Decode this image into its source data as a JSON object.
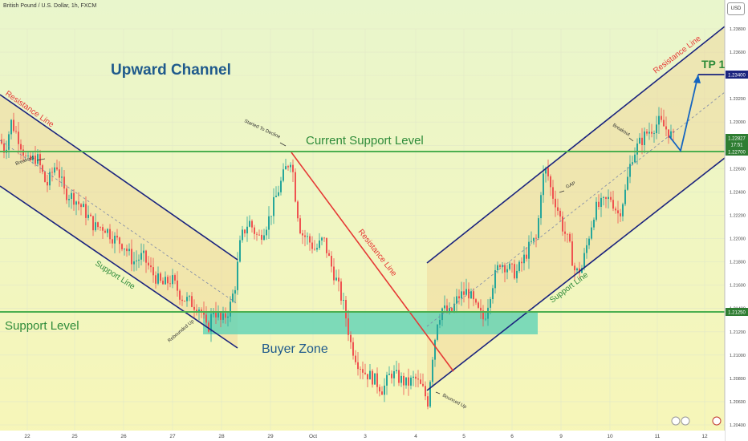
{
  "header": {
    "title": "British Pound / U.S. Dollar, 1h, FXCM",
    "currency_button": "USD"
  },
  "chart_data": {
    "type": "candlestick",
    "symbol": "British Pound / U.S. Dollar, 1h, FXCM",
    "ylim": [
      1.2035,
      1.2395
    ],
    "y_ticks": [
      1.238,
      1.236,
      1.234,
      1.232,
      1.23,
      1.228,
      1.226,
      1.224,
      1.222,
      1.22,
      1.218,
      1.216,
      1.214,
      1.212,
      1.21,
      1.208,
      1.206,
      1.204
    ],
    "x_ticks": [
      "22",
      "25",
      "26",
      "27",
      "28",
      "29",
      "Oct",
      "3",
      "4",
      "5",
      "6",
      "9",
      "10",
      "11",
      "12"
    ],
    "price_labels": [
      {
        "text": "1.23400",
        "value": 1.234,
        "color": "#1a237e"
      },
      {
        "text": "1.22827",
        "value": 1.22827,
        "color": "#2e7d32"
      },
      {
        "text": "17:51",
        "value": 1.2275,
        "color": "#2e7d32"
      },
      {
        "text": "1.22700",
        "value": 1.227,
        "color": "#2e7d32"
      },
      {
        "text": "1.21250",
        "value": 1.2125,
        "color": "#2e7d32"
      }
    ],
    "levels": [
      {
        "name": "Current Support Level",
        "value": 1.227
      },
      {
        "name": "Support Level",
        "value": 1.2125
      }
    ],
    "buyer_zone": {
      "label": "Buyer Zone",
      "top": 1.2125,
      "bottom": 1.2103
    },
    "annotations": {
      "upward_channel": "Upward Channel",
      "resistance_left": "Resistance Line",
      "support_left": "Support Line",
      "resistance_mid": "Resistance Line",
      "resistance_right": "Resistance Line",
      "support_right": "Support Line",
      "tp1": "TP 1",
      "breakout_left": "Breakout",
      "breakout_right": "Breakout",
      "rebounded": "Rebounded Up",
      "started": "Started To Decline",
      "bounced": "Bounced Up",
      "gap": "GAP"
    },
    "path": [
      [
        0,
        1.2285
      ],
      [
        6,
        1.2275
      ],
      [
        14,
        1.23
      ],
      [
        24,
        1.2285
      ],
      [
        34,
        1.2265
      ],
      [
        46,
        1.227
      ],
      [
        58,
        1.2245
      ],
      [
        70,
        1.2265
      ],
      [
        80,
        1.224
      ],
      [
        92,
        1.2235
      ],
      [
        104,
        1.2225
      ],
      [
        118,
        1.221
      ],
      [
        130,
        1.221
      ],
      [
        142,
        1.22
      ],
      [
        154,
        1.2195
      ],
      [
        166,
        1.218
      ],
      [
        178,
        1.2185
      ],
      [
        190,
        1.217
      ],
      [
        202,
        1.216
      ],
      [
        214,
        1.2165
      ],
      [
        226,
        1.215
      ],
      [
        238,
        1.2145
      ],
      [
        250,
        1.214
      ],
      [
        258,
        1.212
      ],
      [
        266,
        1.214
      ],
      [
        276,
        1.2128
      ],
      [
        286,
        1.214
      ],
      [
        293,
        1.216
      ],
      [
        300,
        1.22
      ],
      [
        310,
        1.2215
      ],
      [
        322,
        1.22
      ],
      [
        334,
        1.2215
      ],
      [
        346,
        1.224
      ],
      [
        356,
        1.226
      ],
      [
        363,
        1.227
      ],
      [
        369,
        1.223
      ],
      [
        375,
        1.2205
      ],
      [
        383,
        1.22
      ],
      [
        393,
        1.219
      ],
      [
        403,
        1.22
      ],
      [
        411,
        1.218
      ],
      [
        421,
        1.216
      ],
      [
        429,
        1.214
      ],
      [
        437,
        1.211
      ],
      [
        445,
        1.2095
      ],
      [
        455,
        1.2085
      ],
      [
        465,
        1.208
      ],
      [
        477,
        1.207
      ],
      [
        487,
        1.2085
      ],
      [
        497,
        1.208
      ],
      [
        507,
        1.2075
      ],
      [
        517,
        1.208
      ],
      [
        527,
        1.207
      ],
      [
        533,
        1.206
      ],
      [
        539,
        1.21
      ],
      [
        545,
        1.213
      ],
      [
        551,
        1.214
      ],
      [
        561,
        1.2135
      ],
      [
        571,
        1.215
      ],
      [
        583,
        1.2155
      ],
      [
        593,
        1.214
      ],
      [
        603,
        1.213
      ],
      [
        613,
        1.216
      ],
      [
        623,
        1.218
      ],
      [
        633,
        1.2175
      ],
      [
        643,
        1.217
      ],
      [
        651,
        1.218
      ],
      [
        661,
        1.2195
      ],
      [
        669,
        1.22
      ],
      [
        675,
        1.225
      ],
      [
        681,
        1.226
      ],
      [
        687,
        1.224
      ],
      [
        693,
        1.223
      ],
      [
        701,
        1.221
      ],
      [
        709,
        1.2195
      ],
      [
        717,
        1.217
      ],
      [
        725,
        1.2175
      ],
      [
        733,
        1.22
      ],
      [
        741,
        1.2225
      ],
      [
        751,
        1.223
      ],
      [
        761,
        1.2235
      ],
      [
        771,
        1.222
      ],
      [
        779,
        1.224
      ],
      [
        787,
        1.227
      ],
      [
        795,
        1.228
      ],
      [
        805,
        1.229
      ],
      [
        813,
        1.2295
      ],
      [
        821,
        1.23
      ],
      [
        829,
        1.2295
      ],
      [
        835,
        1.229
      ],
      [
        841,
        1.2283
      ]
    ]
  }
}
